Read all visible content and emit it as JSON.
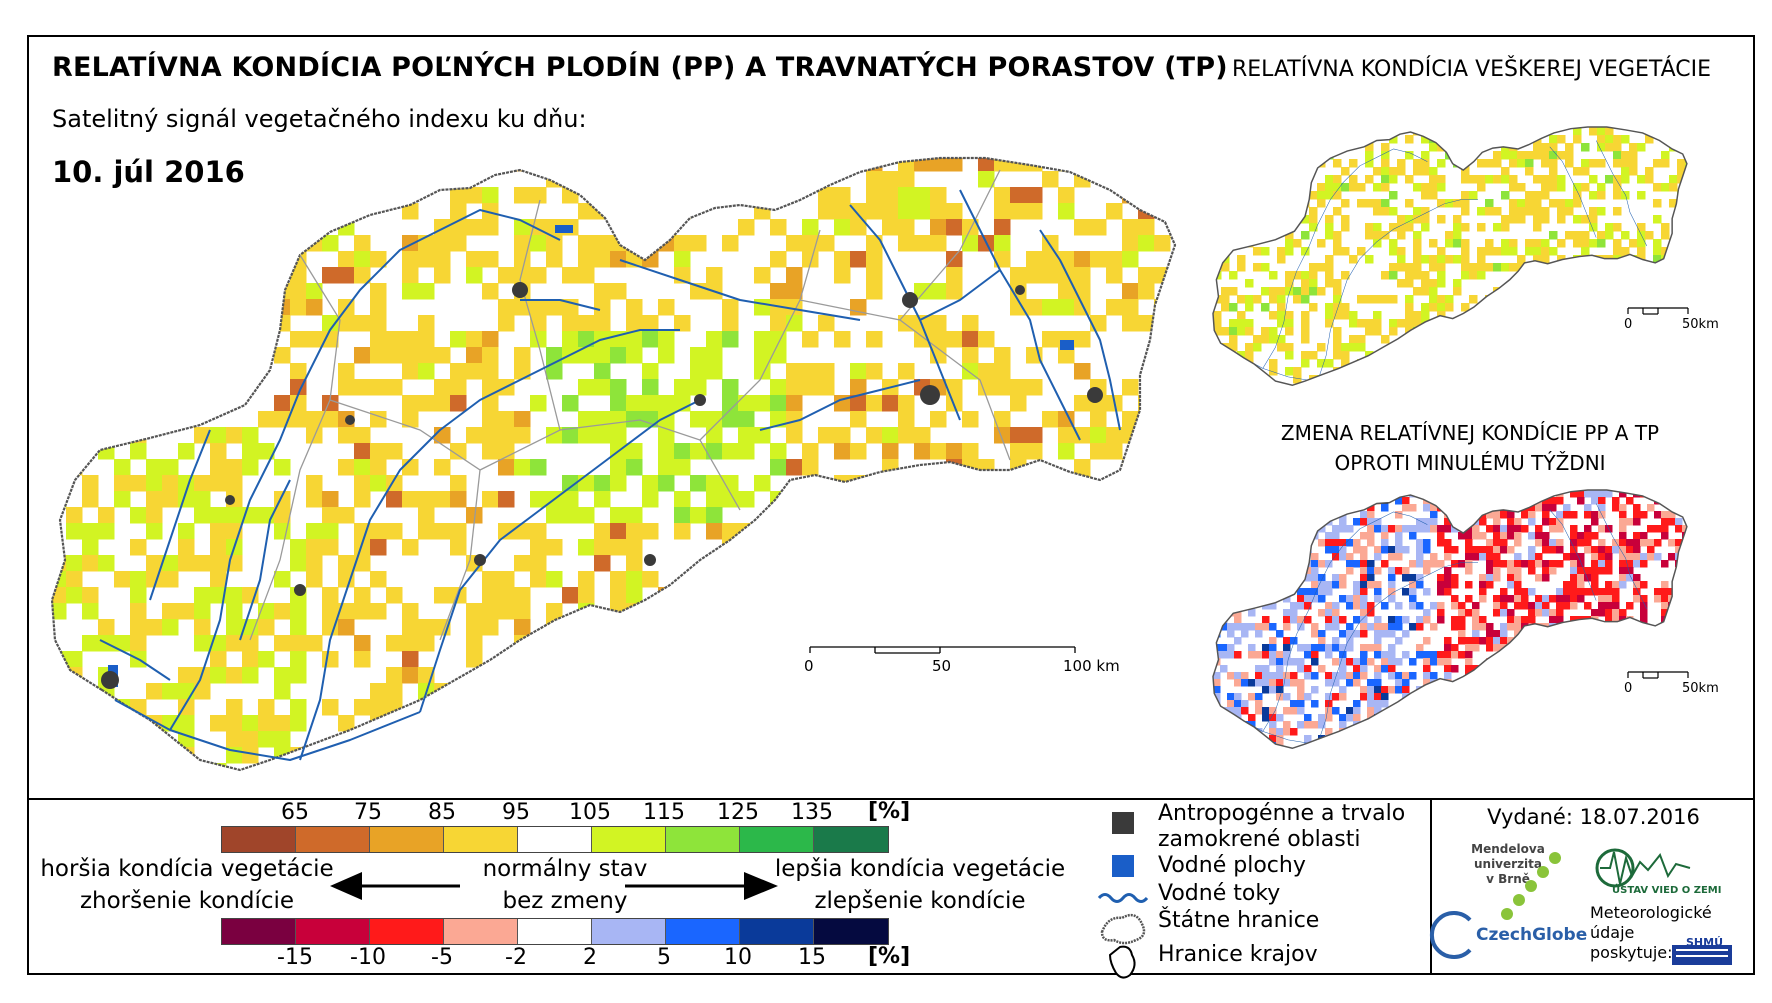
{
  "header": {
    "title": "RELATÍVNA KONDÍCIA POĽNÝCH PLODÍN (PP) A TRAVNATÝCH PORASTOV (TP)",
    "subtitle": "Satelitný signál vegetačného indexu ku dňu:",
    "date": "10. júl 2016",
    "right_title": "RELATÍVNA KONDÍCIA VEŠKEREJ VEGETÁCIE",
    "change_title_line1": "ZMENA RELATÍVNEJ KONDÍCIE PP A TP",
    "change_title_line2": "OPROTI MINULÉMU TÝŽDNI"
  },
  "main_scale": {
    "labels": [
      "0",
      "50",
      "100 km"
    ]
  },
  "small_scale_1": {
    "labels": [
      "0",
      "50km"
    ]
  },
  "small_scale_2": {
    "labels": [
      "0",
      "50km"
    ]
  },
  "condition_legend": {
    "ticks": [
      "65",
      "75",
      "85",
      "95",
      "105",
      "115",
      "125",
      "135"
    ],
    "unit": "[%]",
    "colors": [
      "#a0452a",
      "#cf6a2a",
      "#e8a326",
      "#f7d634",
      "#ffffff",
      "#d2f423",
      "#8ee43a",
      "#2cb84a",
      "#1a7a4a"
    ]
  },
  "change_legend": {
    "ticks": [
      "-15",
      "-10",
      "-5",
      "-2",
      "2",
      "5",
      "10",
      "15"
    ],
    "unit": "[%]",
    "colors": [
      "#7a0040",
      "#c8003a",
      "#ff1a1a",
      "#fba894",
      "#ffffff",
      "#a8b6f4",
      "#1a66ff",
      "#0a3a9a",
      "#050a40"
    ]
  },
  "arrow_labels": {
    "worse_1": "horšia kondícia vegetácie",
    "worse_2": "zhoršenie kondície",
    "normal_1": "normálny stav",
    "normal_2": "bez zmeny",
    "better_1": "lepšia kondícia vegetácie",
    "better_2": "zlepšenie kondície"
  },
  "symbol_legend": {
    "anthropogenic_1": "Antropogénne a trvalo",
    "anthropogenic_2": "zamokrené oblasti",
    "water_bodies": "Vodné plochy",
    "rivers": "Vodné toky",
    "state_borders": "Štátne hranice",
    "region_borders": "Hranice krajov"
  },
  "colors": {
    "anthropogenic": "#3a3a3a",
    "water": "#1a5ec8",
    "river": "#1f5fb0"
  },
  "credits": {
    "issued": "Vydané: 18.07.2016",
    "mendel_1": "Mendelova",
    "mendel_2": "univerzita",
    "mendel_3": "v Brně",
    "czechglobe": "CzechGlobe",
    "uvoz": "ÚSTAV VIED O ZEMI",
    "met_1": "Meteorologické",
    "met_2": "údaje",
    "met_3": "poskytuje:",
    "shmu": "SHMÚ"
  }
}
